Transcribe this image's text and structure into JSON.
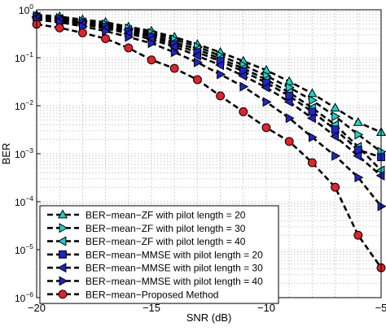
{
  "chart_data": {
    "type": "line",
    "title": "",
    "xlabel": "SNR (dB)",
    "ylabel": "BER",
    "xlim": [
      -20,
      -5
    ],
    "ylim": [
      1e-06,
      1
    ],
    "y_scale": "log",
    "grid": "major and minor, dotted",
    "legend_position": "lower-left",
    "x_ticks": [
      {
        "value": -20,
        "label": "−20"
      },
      {
        "value": -15,
        "label": "−15"
      },
      {
        "value": -10,
        "label": "−10"
      },
      {
        "value": -5,
        "label": "−5"
      }
    ],
    "y_ticks": [
      {
        "value": 1,
        "base": "10",
        "exp": "0"
      },
      {
        "value": 0.1,
        "base": "10",
        "exp": "−1"
      },
      {
        "value": 0.01,
        "base": "10",
        "exp": "−2"
      },
      {
        "value": 0.001,
        "base": "10",
        "exp": "−3"
      },
      {
        "value": 0.0001,
        "base": "10",
        "exp": "−4"
      },
      {
        "value": 1e-05,
        "base": "10",
        "exp": "−5"
      },
      {
        "value": 1e-06,
        "base": "10",
        "exp": "−6"
      }
    ],
    "x": [
      -20,
      -19,
      -18,
      -17,
      -16,
      -15,
      -14,
      -13,
      -12,
      -11,
      -10,
      -9,
      -8,
      -7,
      -6,
      -5
    ],
    "series": [
      {
        "name": "BER−mean−ZF with pilot length = 20",
        "marker": "triangle-up",
        "color": "#19d3c5",
        "values": [
          0.78,
          0.72,
          0.62,
          0.55,
          0.44,
          0.36,
          0.27,
          0.19,
          0.13,
          0.085,
          0.055,
          0.032,
          0.018,
          0.009,
          0.0045,
          0.0028
        ]
      },
      {
        "name": "BER−mean−ZF with pilot length = 30",
        "marker": "triangle-right",
        "color": "#19d3c5",
        "values": [
          0.75,
          0.68,
          0.58,
          0.5,
          0.41,
          0.33,
          0.24,
          0.17,
          0.11,
          0.07,
          0.042,
          0.024,
          0.013,
          0.006,
          0.0025,
          0.0011
        ]
      },
      {
        "name": "BER−mean−ZF with pilot length = 40",
        "marker": "triangle-left",
        "color": "#19d3c5",
        "values": [
          0.72,
          0.65,
          0.55,
          0.46,
          0.38,
          0.3,
          0.21,
          0.15,
          0.095,
          0.06,
          0.035,
          0.019,
          0.009,
          0.004,
          0.0014,
          0.00045
        ]
      },
      {
        "name": "BER−mean−MMSE with pilot length = 20",
        "marker": "square",
        "color": "#1f23c8",
        "values": [
          0.7,
          0.63,
          0.53,
          0.44,
          0.35,
          0.27,
          0.19,
          0.13,
          0.085,
          0.052,
          0.03,
          0.016,
          0.0075,
          0.0032,
          0.0012,
          0.00085
        ]
      },
      {
        "name": "BER−mean−MMSE with pilot length = 30",
        "marker": "triangle-left",
        "color": "#1f23c8",
        "values": [
          0.68,
          0.6,
          0.5,
          0.41,
          0.32,
          0.24,
          0.17,
          0.11,
          0.07,
          0.042,
          0.024,
          0.012,
          0.0055,
          0.0023,
          0.0009,
          0.00035
        ]
      },
      {
        "name": "BER−mean−MMSE with pilot length = 40",
        "marker": "triangle-right",
        "color": "#1f23c8",
        "values": [
          0.62,
          0.55,
          0.45,
          0.36,
          0.27,
          0.2,
          0.13,
          0.08,
          0.045,
          0.025,
          0.012,
          0.0055,
          0.0022,
          0.0009,
          0.00032,
          8e-05
        ]
      },
      {
        "name": "BER−mean−Proposed Method",
        "marker": "circle",
        "color": "#e3222a",
        "values": [
          0.5,
          0.42,
          0.33,
          0.25,
          0.16,
          0.09,
          0.06,
          0.035,
          0.016,
          0.0075,
          0.0035,
          0.0018,
          0.00065,
          0.0002,
          2e-05,
          4.2e-06
        ]
      }
    ]
  }
}
